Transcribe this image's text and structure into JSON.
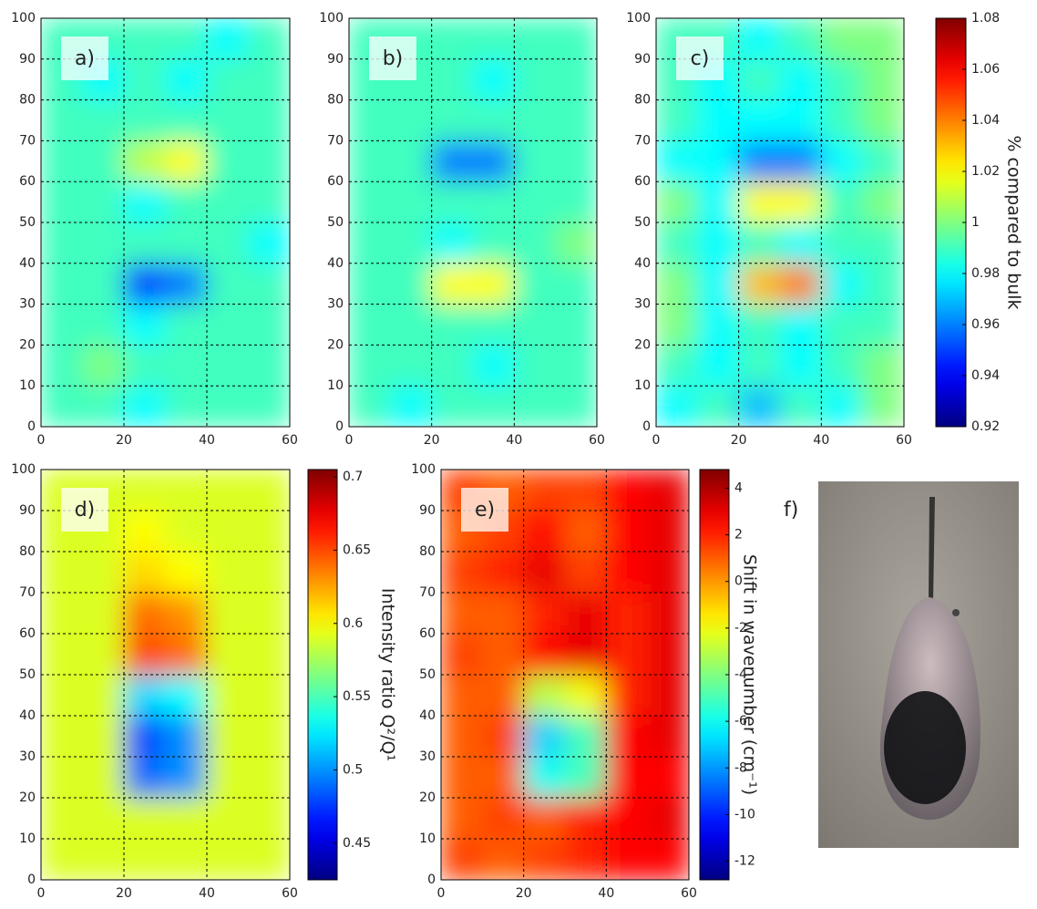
{
  "chart_data": [
    {
      "type": "heatmap",
      "label": "a)",
      "xlim": [
        0,
        60
      ],
      "xticks": [
        0,
        20,
        40,
        60
      ],
      "ylim": [
        0,
        100
      ],
      "yticks": [
        0,
        10,
        20,
        30,
        40,
        50,
        60,
        70,
        80,
        90,
        100
      ],
      "grid": true,
      "colormap": "jet",
      "clim": [
        0.92,
        1.08
      ],
      "x": [
        5,
        15,
        25,
        35,
        45,
        55
      ],
      "y": [
        5,
        15,
        25,
        35,
        45,
        55,
        65,
        75,
        85,
        95
      ],
      "z": [
        [
          0.99,
          0.99,
          0.98,
          0.99,
          0.99,
          0.99
        ],
        [
          0.99,
          1.0,
          0.99,
          0.99,
          0.99,
          0.99
        ],
        [
          0.99,
          0.99,
          0.98,
          0.99,
          0.99,
          0.99
        ],
        [
          0.99,
          0.99,
          0.95,
          0.96,
          0.99,
          0.99
        ],
        [
          0.99,
          0.99,
          0.99,
          0.99,
          0.99,
          0.98
        ],
        [
          0.99,
          0.99,
          0.98,
          0.99,
          0.99,
          0.99
        ],
        [
          0.99,
          0.99,
          1.01,
          1.02,
          0.99,
          0.99
        ],
        [
          0.99,
          0.99,
          0.99,
          0.99,
          0.99,
          0.99
        ],
        [
          0.99,
          0.98,
          0.99,
          0.98,
          0.99,
          0.99
        ],
        [
          0.99,
          0.99,
          0.99,
          0.99,
          0.98,
          0.99
        ]
      ]
    },
    {
      "type": "heatmap",
      "label": "b)",
      "xlim": [
        0,
        60
      ],
      "xticks": [
        0,
        20,
        40,
        60
      ],
      "ylim": [
        0,
        100
      ],
      "yticks": [
        0,
        10,
        20,
        30,
        40,
        50,
        60,
        70,
        80,
        90,
        100
      ],
      "grid": true,
      "colormap": "jet",
      "clim": [
        0.92,
        1.08
      ],
      "x": [
        5,
        15,
        25,
        35,
        45,
        55
      ],
      "y": [
        5,
        15,
        25,
        35,
        45,
        55,
        65,
        75,
        85,
        95
      ],
      "z": [
        [
          0.99,
          0.98,
          0.99,
          0.99,
          0.99,
          0.99
        ],
        [
          0.99,
          0.99,
          0.99,
          0.98,
          0.99,
          0.99
        ],
        [
          0.99,
          0.99,
          0.99,
          0.99,
          0.99,
          0.99
        ],
        [
          0.99,
          0.99,
          1.02,
          1.02,
          0.99,
          0.99
        ],
        [
          0.99,
          0.99,
          0.98,
          0.99,
          0.99,
          1.0
        ],
        [
          0.99,
          0.99,
          0.99,
          0.99,
          0.99,
          0.99
        ],
        [
          0.99,
          0.99,
          0.96,
          0.96,
          0.99,
          0.99
        ],
        [
          0.99,
          0.99,
          0.99,
          0.99,
          0.99,
          0.99
        ],
        [
          0.99,
          0.99,
          0.99,
          0.98,
          0.99,
          0.99
        ],
        [
          0.99,
          0.99,
          0.99,
          0.99,
          0.99,
          0.99
        ]
      ]
    },
    {
      "type": "heatmap",
      "label": "c)",
      "xlim": [
        0,
        60
      ],
      "xticks": [
        0,
        20,
        40,
        60
      ],
      "ylim": [
        0,
        100
      ],
      "yticks": [
        0,
        10,
        20,
        30,
        40,
        50,
        60,
        70,
        80,
        90,
        100
      ],
      "grid": true,
      "colormap": "jet",
      "clim": [
        0.92,
        1.08
      ],
      "colorbar": {
        "label": "% compared to bulk",
        "ticks": [
          0.92,
          0.94,
          0.96,
          0.98,
          1,
          1.02,
          1.04,
          1.06,
          1.08
        ]
      },
      "x": [
        5,
        15,
        25,
        35,
        45,
        55
      ],
      "y": [
        5,
        15,
        25,
        35,
        45,
        55,
        65,
        75,
        85,
        95
      ],
      "z": [
        [
          0.98,
          0.99,
          0.97,
          0.99,
          0.98,
          1.0
        ],
        [
          0.99,
          0.98,
          0.99,
          0.98,
          0.99,
          1.0
        ],
        [
          1.0,
          0.98,
          0.99,
          0.98,
          0.99,
          0.99
        ],
        [
          1.0,
          0.98,
          1.03,
          1.04,
          0.98,
          0.99
        ],
        [
          0.99,
          0.98,
          0.99,
          0.98,
          0.99,
          0.99
        ],
        [
          1.0,
          0.98,
          1.02,
          1.02,
          0.99,
          1.0
        ],
        [
          0.98,
          0.98,
          0.96,
          0.96,
          0.98,
          0.99
        ],
        [
          0.99,
          0.98,
          0.98,
          0.98,
          0.99,
          1.0
        ],
        [
          0.99,
          0.98,
          0.99,
          0.98,
          0.99,
          1.0
        ],
        [
          0.99,
          0.99,
          0.98,
          0.99,
          1.0,
          1.0
        ]
      ]
    },
    {
      "type": "heatmap",
      "label": "d)",
      "xlim": [
        0,
        60
      ],
      "xticks": [
        0,
        20,
        40,
        60
      ],
      "ylim": [
        0,
        100
      ],
      "yticks": [
        0,
        10,
        20,
        30,
        40,
        50,
        60,
        70,
        80,
        90,
        100
      ],
      "grid": true,
      "colormap": "jet",
      "clim": [
        0.425,
        0.705
      ],
      "colorbar": {
        "label": "Intensity ratio Q²/Q¹",
        "ticks": [
          0.45,
          0.5,
          0.55,
          0.6,
          0.65,
          0.7
        ]
      },
      "x": [
        5,
        15,
        25,
        35,
        45,
        55
      ],
      "y": [
        5,
        15,
        25,
        35,
        45,
        55,
        65,
        75,
        85,
        95
      ],
      "z": [
        [
          0.59,
          0.59,
          0.59,
          0.59,
          0.59,
          0.59
        ],
        [
          0.59,
          0.59,
          0.59,
          0.59,
          0.59,
          0.59
        ],
        [
          0.59,
          0.59,
          0.49,
          0.5,
          0.59,
          0.59
        ],
        [
          0.59,
          0.59,
          0.48,
          0.5,
          0.59,
          0.59
        ],
        [
          0.59,
          0.59,
          0.52,
          0.53,
          0.59,
          0.59
        ],
        [
          0.59,
          0.59,
          0.65,
          0.64,
          0.59,
          0.59
        ],
        [
          0.59,
          0.59,
          0.64,
          0.63,
          0.59,
          0.59
        ],
        [
          0.59,
          0.59,
          0.61,
          0.6,
          0.59,
          0.59
        ],
        [
          0.59,
          0.59,
          0.6,
          0.59,
          0.59,
          0.59
        ],
        [
          0.59,
          0.59,
          0.59,
          0.59,
          0.59,
          0.59
        ]
      ]
    },
    {
      "type": "heatmap",
      "label": "e)",
      "xlim": [
        0,
        60
      ],
      "xticks": [
        0,
        20,
        40,
        60
      ],
      "ylim": [
        0,
        100
      ],
      "yticks": [
        0,
        10,
        20,
        30,
        40,
        50,
        60,
        70,
        80,
        90,
        100
      ],
      "grid": true,
      "colormap": "jet",
      "clim": [
        -12.8,
        4.8
      ],
      "colorbar": {
        "label": "Shift in wavenumber (cm⁻¹)",
        "ticks": [
          -12,
          -10,
          -8,
          -6,
          -4,
          -2,
          0,
          2,
          4
        ]
      },
      "x": [
        5,
        15,
        25,
        35,
        45,
        55
      ],
      "y": [
        5,
        15,
        25,
        35,
        45,
        55,
        65,
        75,
        85,
        95
      ],
      "z": [
        [
          1.5,
          1,
          1.5,
          2,
          2.5,
          2.5
        ],
        [
          1,
          1.5,
          1,
          2,
          2.5,
          3
        ],
        [
          1,
          1,
          -6,
          -5,
          2.5,
          2.5
        ],
        [
          1,
          1.5,
          -7,
          -5,
          2.5,
          3
        ],
        [
          1,
          1,
          -3,
          -2,
          2,
          3
        ],
        [
          1.5,
          1,
          2.5,
          3,
          2,
          3
        ],
        [
          1,
          1,
          2,
          3,
          2,
          3
        ],
        [
          1.5,
          2,
          3,
          1.5,
          2.5,
          3
        ],
        [
          1,
          1.5,
          2.5,
          1,
          2.5,
          3
        ],
        [
          1.5,
          1,
          1.5,
          1.5,
          2.5,
          3
        ]
      ]
    }
  ],
  "photo": {
    "label": "f)"
  }
}
